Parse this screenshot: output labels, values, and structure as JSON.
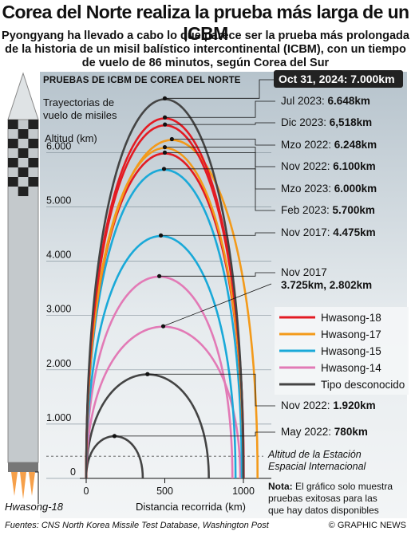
{
  "title": "Corea del Norte realiza la prueba más larga de un ICBM",
  "subtitle": "Pyongyang ha llevado a cabo lo que parece ser la prueba más prolongada de la historia  de un misil balístico intercontinental (ICBM), con un tiempo de vuelo de 86 minutos, según Corea del Sur",
  "chart_data": {
    "type": "line",
    "title": "Pruebas de ICBM de Corea del Norte",
    "note_trajectories": [
      "Trayectorias de",
      "vuelo de misiles"
    ],
    "ylabel": "Altitud (km)",
    "xlabel": "Distancia recorrida (km)",
    "yticks": [
      "0",
      "1.000",
      "2.000",
      "3.000",
      "4.000",
      "5.000",
      "6.000"
    ],
    "xticks": [
      "0",
      "500",
      "1000"
    ],
    "ylim": [
      0,
      7000
    ],
    "xlim": [
      0,
      1200
    ],
    "colors": {
      "Hwasong-18": "#e31b23",
      "Hwasong-17": "#f39a1a",
      "Hwasong-15": "#1aa9d8",
      "Hwasong-14": "#e27ab6",
      "Tipo desconocido": "#444444"
    },
    "series": [
      {
        "date": "Oct 31, 2024:",
        "value_label": "7.000km",
        "apogee": 7000,
        "distance": 1000,
        "type": "Tipo desconocido"
      },
      {
        "date": "Jul 2023:",
        "value_label": "6.648km",
        "apogee": 6648,
        "distance": 1001,
        "type": "Hwasong-18"
      },
      {
        "date": "Dic 2023:",
        "value_label": "6,518km",
        "apogee": 6518,
        "distance": 1002,
        "type": "Hwasong-18"
      },
      {
        "date": "Mzo 2022:",
        "value_label": "6.248km",
        "apogee": 6248,
        "distance": 1090,
        "type": "Hwasong-17"
      },
      {
        "date": "Nov 2022:",
        "value_label": "6.100km",
        "apogee": 6100,
        "distance": 1000,
        "type": "Hwasong-17"
      },
      {
        "date": "Mzo 2023:",
        "value_label": "6.000km",
        "apogee": 6000,
        "distance": 1000,
        "type": "Hwasong-18"
      },
      {
        "date": "Feb 2023:",
        "value_label": "5.700km",
        "apogee": 5700,
        "distance": 990,
        "type": "Hwasong-15"
      },
      {
        "date": "Nov 2017:",
        "value_label": "4.475km",
        "apogee": 4475,
        "distance": 950,
        "type": "Hwasong-15"
      },
      {
        "date": "Nov 2017",
        "value_label": "3.725km, 2.802km",
        "apogee": 3725,
        "distance": 930,
        "type": "Hwasong-14"
      },
      {
        "date": "",
        "value_label": "",
        "apogee": 2802,
        "distance": 980,
        "type": "Hwasong-14"
      },
      {
        "date": "Nov 2022:",
        "value_label": "1.920km",
        "apogee": 1920,
        "distance": 780,
        "type": "Tipo desconocido"
      },
      {
        "date": "May 2022:",
        "value_label": "780km",
        "apogee": 780,
        "distance": 360,
        "type": "Tipo desconocido"
      }
    ],
    "legend": [
      "Hwasong-18",
      "Hwasong-17",
      "Hwasong-15",
      "Hwasong-14",
      "Tipo desconocido"
    ],
    "iss_label": [
      "Altitud de la Estación",
      "Espacial Internacional"
    ],
    "iss_altitude": 408,
    "missile_label": "Hwasong-18",
    "note_bold": "Nota:",
    "note_text": [
      "El gráfico solo muestra",
      "pruebas exitosas para las",
      "que hay datos disponibles"
    ]
  },
  "footer": "Fuentes: CNS North Korea Missile Test Database, Washington Post",
  "credit": "© GRAPHIC NEWS"
}
